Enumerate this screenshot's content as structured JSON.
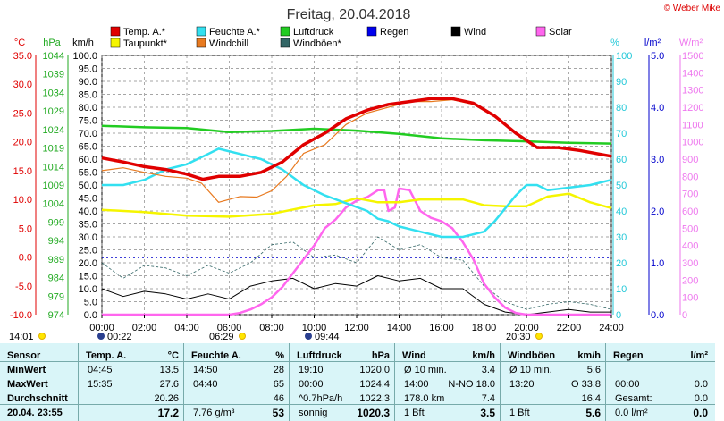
{
  "title": "Freitag, 20.04.2018",
  "credit": "© Weber Mike",
  "units": {
    "temp": "°C",
    "hpa": "hPa",
    "kmh": "km/h",
    "pct": "%",
    "lm2": "l/m²",
    "wm2": "W/m²"
  },
  "legend": [
    {
      "label": "Temp. A.*",
      "color": "#e00000"
    },
    {
      "label": "Feuchte A.*",
      "color": "#33e0f0"
    },
    {
      "label": "Luftdruck",
      "color": "#22cc22"
    },
    {
      "label": "Regen",
      "color": "#0000ee"
    },
    {
      "label": "Wind",
      "color": "#000000"
    },
    {
      "label": "Solar",
      "color": "#ff66ee"
    },
    {
      "label": "Taupunkt*",
      "color": "#f5f500"
    },
    {
      "label": "Windchill",
      "color": "#e87a20"
    },
    {
      "label": "Windböen*",
      "color": "#336666"
    }
  ],
  "events": [
    {
      "time": "14:01",
      "sym": "sun"
    },
    {
      "time": "00:22",
      "sym": "moon"
    },
    {
      "time": "06:29",
      "sym": "sun"
    },
    {
      "time": "09:44",
      "sym": "moon"
    },
    {
      "time": "20:30",
      "sym": "sun"
    }
  ],
  "chart_data": {
    "type": "line",
    "x_ticks": [
      "00:00",
      "02:00",
      "04:00",
      "06:00",
      "08:00",
      "10:00",
      "12:00",
      "14:00",
      "16:00",
      "18:00",
      "20:00",
      "22:00",
      "24:00"
    ],
    "axes": {
      "temp": {
        "label": "°C",
        "ticks": [
          "35.0",
          "30.0",
          "25.0",
          "20.0",
          "15.0",
          "10.0",
          "5.0",
          "0.0",
          "-5.0",
          "-10.0"
        ],
        "range": [
          -10,
          35
        ],
        "color": "#e00000"
      },
      "hpa": {
        "label": "hPa",
        "ticks": [
          "1044",
          "1039",
          "1034",
          "1029",
          "1024",
          "1019",
          "1014",
          "1009",
          "1004",
          "999",
          "994",
          "989",
          "984",
          "979",
          "974"
        ],
        "range": [
          974,
          1044
        ],
        "color": "#22aa22"
      },
      "kmh": {
        "label": "km/h",
        "ticks": [
          "100.0",
          "95.0",
          "90.0",
          "85.0",
          "80.0",
          "75.0",
          "70.0",
          "65.0",
          "60.0",
          "55.0",
          "50.0",
          "45.0",
          "40.0",
          "35.0",
          "30.0",
          "25.0",
          "20.0",
          "15.0",
          "10.0",
          "5.0",
          "0.0"
        ],
        "range": [
          0,
          100
        ],
        "color": "#000000"
      },
      "pct": {
        "label": "%",
        "ticks": [
          "100",
          "90",
          "80",
          "70",
          "60",
          "50",
          "40",
          "30",
          "20",
          "10",
          "0"
        ],
        "range": [
          0,
          100
        ],
        "color": "#22c8d8"
      },
      "lm2": {
        "label": "l/m²",
        "ticks": [
          "5.0",
          "4.0",
          "3.0",
          "2.0",
          "1.0",
          "0.0"
        ],
        "range": [
          0,
          5
        ],
        "color": "#0000cc"
      },
      "wm2": {
        "label": "W/m²",
        "ticks": [
          "1500",
          "1400",
          "1300",
          "1200",
          "1100",
          "1000",
          "900",
          "800",
          "700",
          "600",
          "500",
          "400",
          "300",
          "200",
          "100",
          "0"
        ],
        "range": [
          0,
          1500
        ],
        "color": "#ee77ee"
      }
    },
    "series": [
      {
        "name": "Temp. A.*",
        "axis": "temp",
        "x": [
          0,
          1,
          2,
          3,
          4,
          4.75,
          5.5,
          6.5,
          7.5,
          8.5,
          9.5,
          10.5,
          11.5,
          12.5,
          13.5,
          14.5,
          15.5,
          16.5,
          17.5,
          18.5,
          19.5,
          20.5,
          21.5,
          22.5,
          24
        ],
        "y": [
          17.2,
          16.5,
          15.7,
          15.2,
          14.4,
          13.5,
          14,
          14,
          14.7,
          16.5,
          19.5,
          21.5,
          24,
          25.5,
          26.5,
          27,
          27.5,
          27.5,
          26.7,
          24.5,
          21.5,
          19,
          19,
          18.5,
          17.5
        ]
      },
      {
        "name": "Windchill",
        "axis": "temp",
        "x": [
          0,
          1,
          2,
          3,
          4,
          4.7,
          5.5,
          6.5,
          7.3,
          8,
          8.7,
          9.5,
          10.5,
          11.5,
          12.5,
          13.5,
          14.5,
          15.5,
          16.5,
          17.5,
          18.5,
          19.5,
          20.5,
          21.5,
          22.5,
          24
        ],
        "y": [
          15,
          15.5,
          14.7,
          14,
          13.7,
          12.8,
          9.5,
          10.5,
          10.4,
          11.5,
          14,
          18,
          19.5,
          23,
          25,
          26,
          27,
          27,
          27.3,
          26.5,
          24.5,
          21.5,
          19,
          19,
          18.5,
          17.5
        ]
      },
      {
        "name": "Luftdruck",
        "axis": "hpa",
        "x": [
          0,
          2,
          4,
          6,
          8,
          10,
          12,
          14,
          16,
          18,
          20,
          22,
          24
        ],
        "y": [
          1025,
          1024.6,
          1024.4,
          1023.3,
          1023.6,
          1024.2,
          1023.7,
          1022.8,
          1021.6,
          1021.1,
          1020.8,
          1020.4,
          1020.2
        ]
      },
      {
        "name": "Taupunkt*",
        "axis": "temp",
        "x": [
          0,
          2,
          4,
          6,
          8,
          10,
          11,
          12,
          13,
          14,
          15,
          16,
          17,
          18,
          19,
          20,
          21,
          22,
          23,
          24
        ],
        "y": [
          8.2,
          7.8,
          7.2,
          7.0,
          7.5,
          9.0,
          9.2,
          10.2,
          9.5,
          9.5,
          10,
          10,
          10,
          9,
          8.8,
          8.8,
          10.5,
          11,
          9.5,
          8.5
        ]
      },
      {
        "name": "Feuchte A.*",
        "axis": "pct",
        "x": [
          0,
          1,
          2,
          3,
          4,
          5,
          5.5,
          6.5,
          7.5,
          8.5,
          9.5,
          10.5,
          11.5,
          12.5,
          13,
          13.5,
          14,
          15,
          16,
          17,
          18,
          18.5,
          19.5,
          20,
          20.5,
          21,
          22,
          23,
          24
        ],
        "y": [
          50,
          50,
          52,
          56,
          58,
          62,
          64,
          62,
          60,
          56,
          50,
          46,
          43,
          40,
          37,
          36,
          34,
          32,
          30,
          30,
          32,
          36,
          46,
          50,
          50,
          48,
          49,
          50,
          52
        ]
      },
      {
        "name": "Solar",
        "axis": "wm2",
        "x": [
          0,
          5.5,
          6,
          6.5,
          7,
          7.5,
          8,
          8.5,
          9,
          9.5,
          10,
          10.5,
          11,
          11.5,
          12,
          12.5,
          13,
          13.3,
          13.5,
          13.8,
          14,
          14.5,
          15,
          15.5,
          16,
          16.5,
          17,
          17.5,
          18,
          18.5,
          19,
          19.5,
          20,
          24
        ],
        "y": [
          0,
          0,
          0,
          10,
          30,
          60,
          100,
          160,
          240,
          320,
          400,
          500,
          550,
          620,
          660,
          680,
          720,
          720,
          600,
          620,
          730,
          720,
          600,
          560,
          540,
          500,
          420,
          320,
          180,
          100,
          40,
          10,
          0,
          0
        ]
      },
      {
        "name": "Windböen*",
        "axis": "kmh",
        "x": [
          0,
          1,
          2,
          3,
          4,
          5,
          6,
          7,
          8,
          9,
          10,
          11,
          12,
          13,
          14,
          15,
          16,
          17,
          18,
          19,
          20,
          21,
          22,
          23,
          24
        ],
        "y": [
          20,
          14,
          19,
          18,
          15,
          19,
          16,
          20,
          27,
          28,
          22,
          23,
          20,
          30,
          25,
          27,
          22,
          21,
          11,
          5,
          2,
          4,
          5,
          4,
          2
        ]
      },
      {
        "name": "Wind",
        "axis": "kmh",
        "x": [
          0,
          1,
          2,
          3,
          4,
          5,
          6,
          7,
          8,
          9,
          10,
          11,
          12,
          13,
          14,
          15,
          16,
          17,
          18,
          19,
          20,
          21,
          22,
          23,
          24
        ],
        "y": [
          10,
          7,
          9,
          8,
          6,
          8,
          6,
          11,
          13,
          14,
          10,
          12,
          11,
          15,
          13,
          14,
          10,
          10,
          4,
          1,
          0,
          1,
          2,
          1,
          1
        ]
      }
    ],
    "dashed_line": {
      "axis": "lm2",
      "value": 1.1,
      "color": "#0000cc"
    }
  },
  "stats": {
    "sensor_label": "Sensor",
    "row_labels": [
      "MinWert",
      "MaxWert",
      "Durchschnitt",
      "20.04. 23:55"
    ],
    "temp": {
      "header": "Temp. A.",
      "unit": "°C",
      "min_time": "04:45",
      "min": "13.5",
      "max_time": "15:35",
      "max": "27.6",
      "avg": "20.26",
      "now": "17.2"
    },
    "hum": {
      "header": "Feuchte A.",
      "unit": "%",
      "min_time": "14:50",
      "min": "28",
      "max_time": "04:40",
      "max": "65",
      "avg": "46",
      "now_extra": "7.76 g/m³",
      "now": "53"
    },
    "press": {
      "header": "Luftdruck",
      "unit": "hPa",
      "min_time": "19:10",
      "min": "1020.0",
      "max_time": "00:00",
      "max": "1024.4",
      "avg_label": "^0.7hPa/h",
      "avg": "1022.3",
      "now_label": "sonnig",
      "now": "1020.3"
    },
    "wind": {
      "header": "Wind",
      "unit": "km/h",
      "r1_label": "Ø 10 min.",
      "r1": "3.4",
      "r2_time": "14:00",
      "r2_dir": "N-NO 18.0",
      "r3_label": "178.0 km",
      "r3": "7.4",
      "r4_label": "1 Bft",
      "r4": "3.5"
    },
    "gust": {
      "header": "Windböen",
      "unit": "km/h",
      "r1_label": "Ø 10 min.",
      "r1": "5.6",
      "r2_time": "13:20",
      "r2_dir": "O 33.8",
      "r3": "16.4",
      "r4_label": "1 Bft",
      "r4": "5.6"
    },
    "rain": {
      "header": "Regen",
      "unit": "l/m²",
      "r2_time": "00:00",
      "r2": "0.0",
      "r3_label": "Gesamt:",
      "r3": "0.0",
      "r4_label": "0.0 l/m²",
      "r4": "0.0"
    }
  }
}
